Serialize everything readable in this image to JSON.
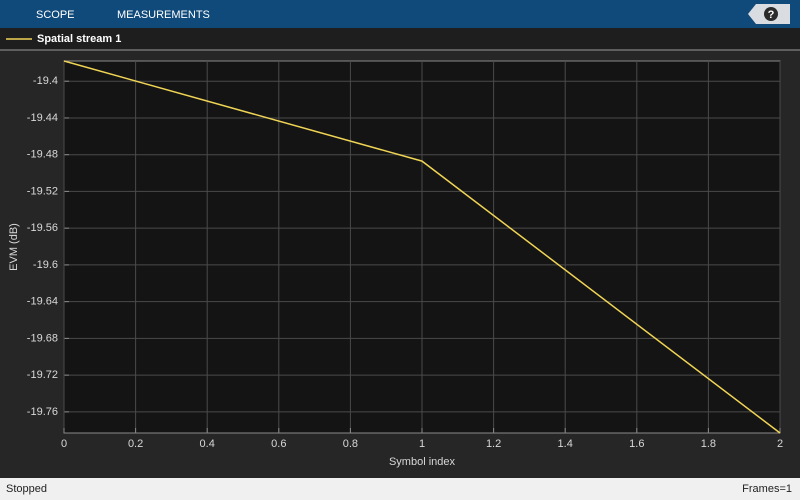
{
  "toolbar": {
    "tabs": [
      "SCOPE",
      "MEASUREMENTS"
    ],
    "help": "?"
  },
  "chart_data": {
    "type": "line",
    "x": [
      0,
      1,
      2
    ],
    "series": [
      {
        "name": "Spatial stream 1",
        "color": "#f0d455",
        "values": [
          -19.378,
          -19.487,
          -19.783
        ]
      }
    ],
    "xlabel": "Symbol index",
    "ylabel": "EVM (dB)",
    "xlim": [
      0,
      2
    ],
    "xticks": [
      0,
      0.2,
      0.4,
      0.6,
      0.8,
      1,
      1.2,
      1.4,
      1.6,
      1.8,
      2
    ],
    "ylim": [
      -19.783,
      -19.378
    ],
    "yticks": [
      -19.76,
      -19.72,
      -19.68,
      -19.64,
      -19.6,
      -19.56,
      -19.52,
      -19.48,
      -19.44,
      -19.4
    ],
    "grid": true,
    "legend": "top-left"
  },
  "status_bar": {
    "left": "Stopped",
    "right": "Frames=1"
  }
}
